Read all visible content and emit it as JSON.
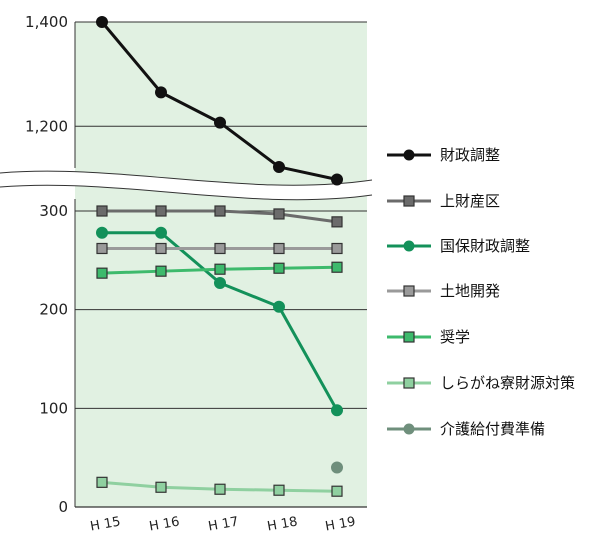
{
  "chart_data": {
    "type": "line",
    "categories": [
      "H 15",
      "H 16",
      "H 17",
      "H 18",
      "H 19"
    ],
    "upper_yticks": [
      "1,400",
      "1,200"
    ],
    "lower_yticks": [
      "300",
      "200",
      "100",
      "0"
    ],
    "axis_break": true,
    "grid": true,
    "legend_position": "right",
    "upper_ylim": [
      1120,
      1400
    ],
    "lower_ylim": [
      0,
      300
    ],
    "series": [
      {
        "name": "財政調整",
        "marker": "circle",
        "color": "#111111",
        "values": [
          1400,
          1265,
          1207,
          1122,
          1098
        ]
      },
      {
        "name": "上財産区",
        "marker": "square",
        "color": "#6b6b6b",
        "values": [
          300,
          300,
          300,
          297,
          289
        ]
      },
      {
        "name": "国保財政調整",
        "marker": "circle",
        "color": "#13915a",
        "values": [
          278,
          278,
          227,
          203,
          98
        ]
      },
      {
        "name": "土地開発",
        "marker": "square",
        "color": "#9a9a9a",
        "values": [
          262,
          262,
          262,
          262,
          262
        ]
      },
      {
        "name": "奨学",
        "marker": "square",
        "color": "#3dba6c",
        "values": [
          237,
          239,
          241,
          242,
          243
        ]
      },
      {
        "name": "しらがね寮財源対策",
        "marker": "square",
        "color": "#8fd0a0",
        "values": [
          25,
          20,
          18,
          17,
          16
        ]
      },
      {
        "name": "介護給付費準備",
        "marker": "circle",
        "color": "#6f8f7c",
        "values": [
          null,
          null,
          null,
          null,
          40
        ]
      }
    ]
  }
}
